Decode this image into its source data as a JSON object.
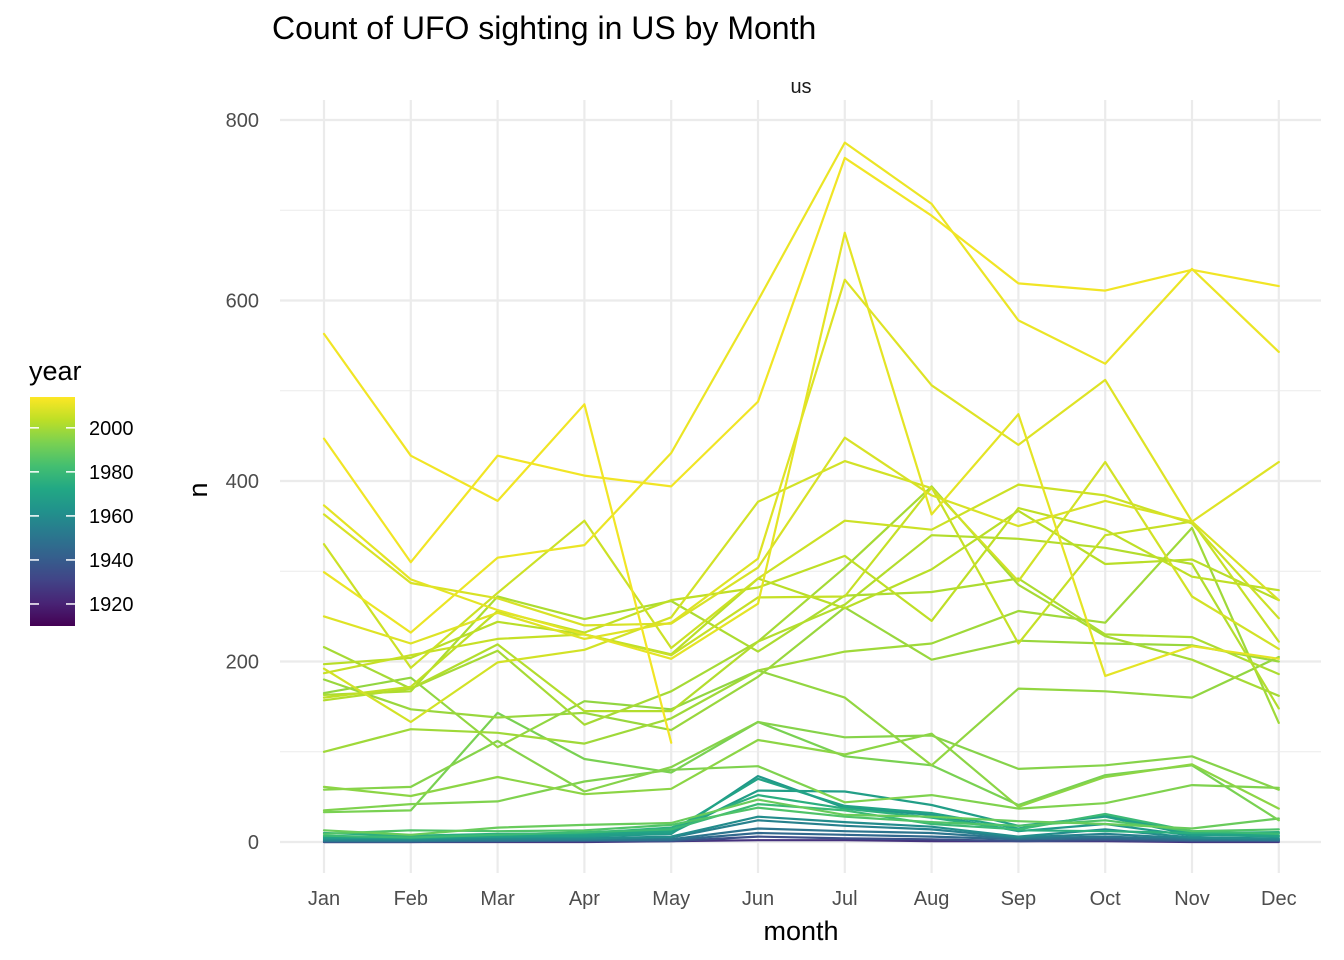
{
  "chart_data": {
    "type": "line",
    "title": "Count of UFO sighting in US by Month",
    "facet_label": "us",
    "xlabel": "month",
    "ylabel": "n",
    "categories": [
      "Jan",
      "Feb",
      "Mar",
      "Apr",
      "May",
      "Jun",
      "Jul",
      "Aug",
      "Sep",
      "Oct",
      "Nov",
      "Dec"
    ],
    "ylim": [
      -60,
      808
    ],
    "y_ticks": [
      0,
      200,
      400,
      600,
      800
    ],
    "grid": true,
    "legend": {
      "title": "year",
      "position": "left",
      "scale": "viridis",
      "range": [
        1910,
        2014
      ],
      "ticks": [
        1920,
        1940,
        1960,
        1980,
        2000
      ]
    },
    "series": [
      {
        "year": 2013,
        "values": [
          0,
          0,
          0,
          0,
          0,
          0,
          0,
          0,
          0,
          0,
          0,
          0
        ],
        "omit_head": true,
        "custom": [
          563,
          428,
          378,
          485,
          110
        ]
      },
      {
        "year": 2012,
        "values": [
          563,
          428,
          378,
          485,
          110,
          null,
          null,
          null,
          null,
          null,
          null,
          null
        ]
      },
      {
        "year": 2012,
        "values": [
          447,
          310,
          428,
          406,
          394,
          488,
          758,
          694,
          619,
          611,
          634,
          616
        ]
      },
      {
        "year": 2011,
        "values": [
          299,
          232,
          315,
          329,
          431,
          600,
          775,
          707,
          578,
          530,
          635,
          543
        ]
      },
      {
        "year": 2010,
        "values": [
          373,
          291,
          257,
          230,
          203,
          264,
          675,
          363,
          474,
          184,
          217,
          203
        ]
      },
      {
        "year": 2009,
        "values": [
          250,
          220,
          254,
          225,
          243,
          314,
          623,
          506,
          440,
          512,
          355,
          421
        ]
      },
      {
        "year": 2008,
        "values": [
          363,
          287,
          270,
          240,
          242,
          304,
          448,
          384,
          350,
          378,
          355,
          268
        ]
      },
      {
        "year": 2007,
        "values": [
          192,
          133,
          199,
          213,
          249,
          377,
          422,
          392,
          289,
          421,
          272,
          214
        ]
      },
      {
        "year": 2006,
        "values": [
          330,
          193,
          276,
          356,
          215,
          292,
          356,
          346,
          396,
          384,
          353,
          248
        ]
      },
      {
        "year": 2005,
        "values": [
          187,
          207,
          225,
          230,
          207,
          271,
          272,
          393,
          220,
          340,
          355,
          222
        ]
      },
      {
        "year": 2004,
        "values": [
          160,
          172,
          256,
          232,
          268,
          282,
          317,
          245,
          370,
          346,
          294,
          279
        ]
      },
      {
        "year": 2003,
        "values": [
          197,
          204,
          244,
          230,
          208,
          292,
          259,
          302,
          367,
          308,
          313,
          268
        ]
      },
      {
        "year": 2002,
        "values": [
          157,
          170,
          219,
          145,
          145,
          222,
          263,
          340,
          336,
          326,
          308,
          148
        ]
      },
      {
        "year": 2001,
        "values": [
          163,
          167,
          272,
          247,
          267,
          211,
          273,
          277,
          292,
          230,
          227,
          186
        ]
      },
      {
        "year": 2000,
        "values": [
          216,
          170,
          212,
          130,
          167,
          222,
          304,
          394,
          285,
          228,
          202,
          162
        ]
      },
      {
        "year": 1999,
        "values": [
          100,
          125,
          121,
          109,
          137,
          190,
          211,
          220,
          256,
          243,
          348,
          132
        ]
      },
      {
        "year": 1998,
        "values": [
          180,
          147,
          138,
          143,
          124,
          183,
          260,
          202,
          223,
          220,
          218,
          200
        ]
      },
      {
        "year": 1997,
        "values": [
          165,
          182,
          105,
          156,
          147,
          190,
          160,
          85,
          170,
          167,
          160,
          205
        ]
      },
      {
        "year": 1996,
        "values": [
          61,
          51,
          72,
          53,
          59,
          113,
          97,
          120,
          39,
          72,
          86,
          37
        ]
      },
      {
        "year": 1995,
        "values": [
          58,
          61,
          112,
          56,
          83,
          133,
          116,
          118,
          81,
          85,
          95,
          58
        ]
      },
      {
        "year": 1994,
        "values": [
          35,
          42,
          45,
          67,
          80,
          84,
          44,
          52,
          37,
          43,
          63,
          60
        ]
      },
      {
        "year": 1993,
        "values": [
          33,
          35,
          143,
          92,
          77,
          133,
          95,
          85,
          41,
          74,
          85,
          24
        ]
      },
      {
        "year": 1990,
        "values": [
          13,
          8,
          16,
          19,
          21,
          47,
          30,
          28,
          23,
          20,
          15,
          26
        ]
      },
      {
        "year": 1985,
        "values": [
          9,
          13,
          12,
          13,
          19,
          38,
          28,
          22,
          18,
          24,
          12,
          14
        ]
      },
      {
        "year": 1980,
        "values": [
          7,
          5,
          8,
          11,
          14,
          42,
          35,
          20,
          14,
          31,
          12,
          9
        ]
      },
      {
        "year": 1975,
        "values": [
          10,
          7,
          9,
          10,
          16,
          52,
          37,
          27,
          13,
          12,
          10,
          11
        ]
      },
      {
        "year": 1970,
        "values": [
          6,
          6,
          7,
          9,
          12,
          70,
          40,
          32,
          15,
          30,
          10,
          7
        ]
      },
      {
        "year": 1968,
        "values": [
          5,
          4,
          6,
          7,
          10,
          57,
          56,
          41,
          18,
          28,
          8,
          6
        ]
      },
      {
        "year": 1965,
        "values": [
          4,
          5,
          6,
          6,
          9,
          73,
          38,
          30,
          12,
          20,
          7,
          10
        ]
      },
      {
        "year": 1960,
        "values": [
          3,
          3,
          4,
          4,
          6,
          28,
          22,
          17,
          6,
          14,
          5,
          4
        ]
      },
      {
        "year": 1955,
        "values": [
          2,
          2,
          3,
          3,
          5,
          24,
          18,
          14,
          5,
          9,
          4,
          3
        ]
      },
      {
        "year": 1950,
        "values": [
          1,
          1,
          2,
          2,
          3,
          15,
          12,
          10,
          4,
          6,
          3,
          2
        ]
      },
      {
        "year": 1945,
        "values": [
          1,
          1,
          1,
          2,
          2,
          10,
          8,
          6,
          3,
          4,
          2,
          2
        ]
      },
      {
        "year": 1935,
        "values": [
          0,
          0,
          1,
          1,
          1,
          6,
          4,
          3,
          1,
          2,
          1,
          1
        ]
      },
      {
        "year": 1925,
        "values": [
          0,
          0,
          0,
          0,
          1,
          2,
          2,
          1,
          1,
          1,
          0,
          0
        ]
      }
    ]
  }
}
